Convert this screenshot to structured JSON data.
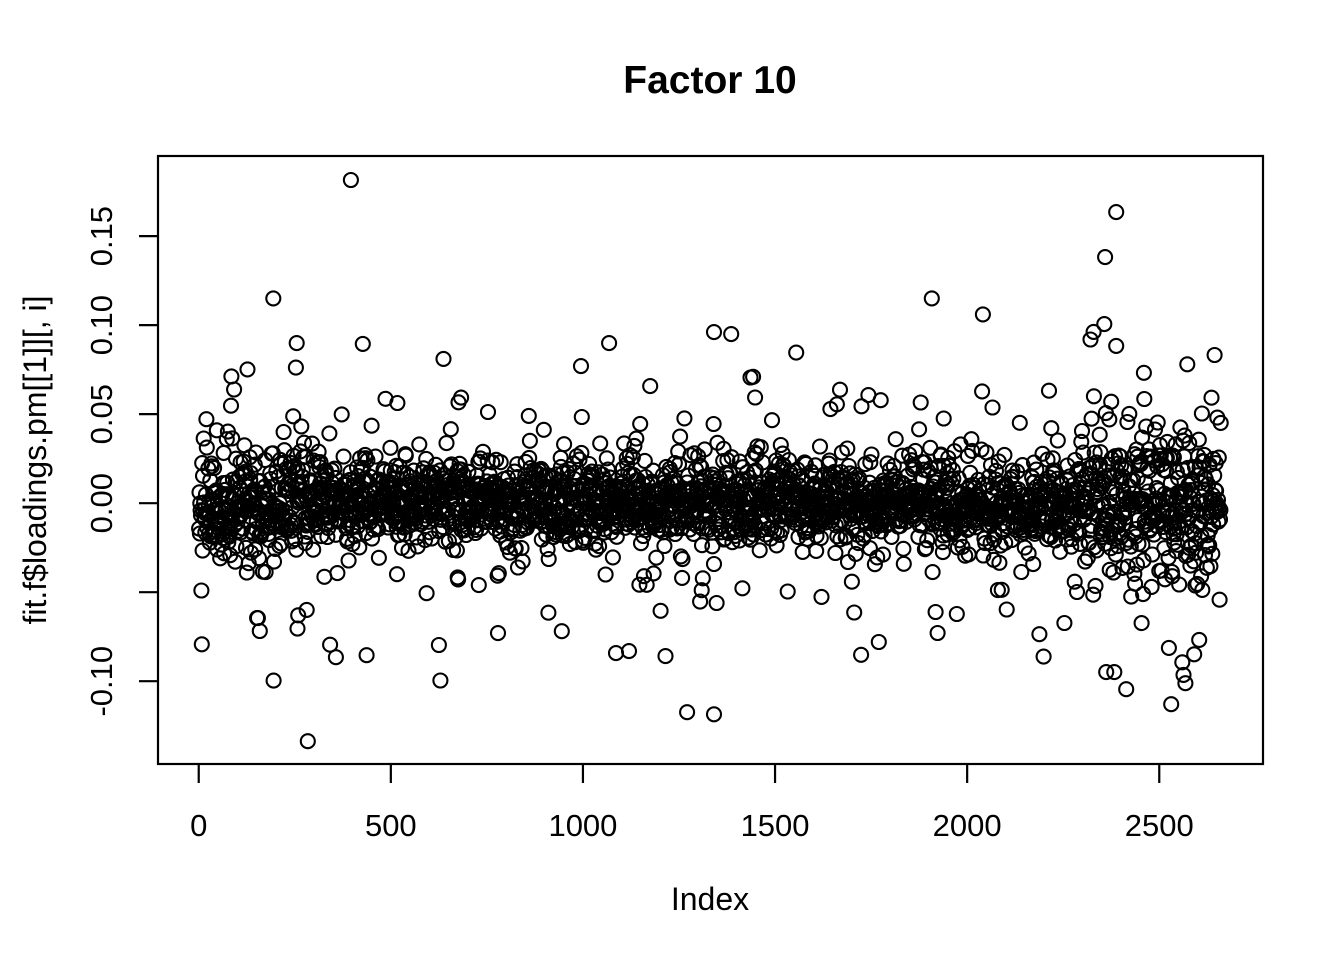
{
  "chart_data": {
    "type": "scatter",
    "title": "Factor 10",
    "xlabel": "Index",
    "ylabel": "fit.f$loadings.pm[[1]][, i]",
    "xlim": [
      -106,
      2770
    ],
    "ylim": [
      -0.1465,
      0.195
    ],
    "x_ticks": [
      {
        "value": 0,
        "label": "0"
      },
      {
        "value": 500,
        "label": "500"
      },
      {
        "value": 1000,
        "label": "1000"
      },
      {
        "value": 1500,
        "label": "1500"
      },
      {
        "value": 2000,
        "label": "2000"
      },
      {
        "value": 2500,
        "label": "2500"
      }
    ],
    "y_ticks": [
      {
        "value": 0.15,
        "label": "0.15"
      },
      {
        "value": 0.1,
        "label": "0.10"
      },
      {
        "value": 0.05,
        "label": "0.05"
      },
      {
        "value": 0.0,
        "label": "0.00"
      },
      {
        "value": -0.05,
        "label": ""
      },
      {
        "value": -0.1,
        "label": "-0.10"
      }
    ],
    "grid": false,
    "legend": null,
    "n_points": 2660,
    "marker": {
      "shape": "open-circle",
      "radius_px": 7,
      "stroke_px": 2.1,
      "color": "#000000"
    },
    "colors": {
      "foreground": "#000000",
      "background": "#ffffff"
    },
    "distribution": {
      "comment": "dense zero-centered band with heavier tails; spread widens at both ends of the index range",
      "seed": 42,
      "core_sd": 0.0115,
      "mid_prob": 0.14,
      "mid_scale": 2.6,
      "tail_prob": 0.025,
      "tail_scale": 4.3,
      "left_boost_end": 320,
      "left_boost": 1.3,
      "right_boost_start": 2300,
      "right_boost": 1.55,
      "clip": [
        -0.118,
        0.115
      ]
    },
    "notable_outliers": [
      [
        396,
        0.1815
      ],
      [
        2388,
        0.1635
      ],
      [
        2359,
        0.1382
      ],
      [
        2357,
        0.1006
      ],
      [
        255,
        0.0899
      ],
      [
        1068,
        0.0899
      ],
      [
        1341,
        0.0961
      ],
      [
        995,
        0.077
      ],
      [
        1436,
        0.0706
      ],
      [
        1443,
        0.071
      ],
      [
        284,
        -0.1337
      ],
      [
        1271,
        -0.1174
      ],
      [
        1341,
        -0.1186
      ],
      [
        2362,
        -0.0949
      ],
      [
        2383,
        -0.0949
      ],
      [
        2414,
        -0.1045
      ],
      [
        2531,
        -0.1129
      ],
      [
        2568,
        -0.1011
      ],
      [
        357,
        -0.0865
      ],
      [
        437,
        -0.0854
      ],
      [
        779,
        -0.073
      ],
      [
        945,
        -0.0719
      ],
      [
        1086,
        -0.0842
      ],
      [
        1120,
        -0.0831
      ]
    ]
  }
}
